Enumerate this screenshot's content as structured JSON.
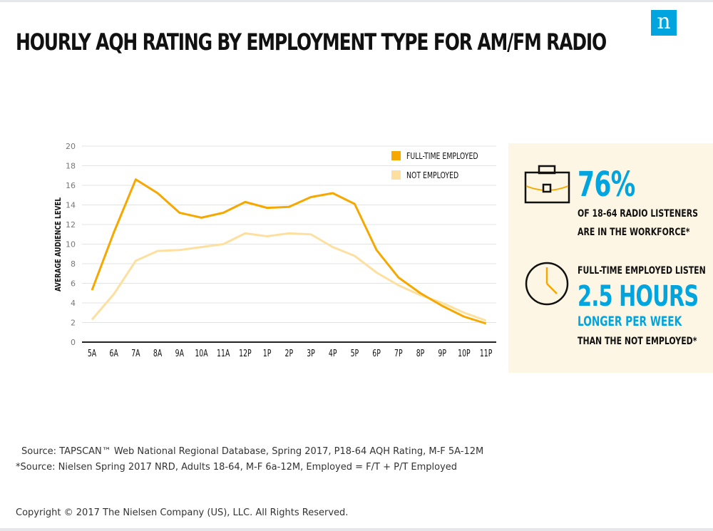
{
  "title": "HOURLY AQH RATING BY EMPLOYMENT TYPE FOR AM/FM RADIO",
  "brand": {
    "logo_letter": "n",
    "logo_color": "#00a5e0"
  },
  "chart_data": {
    "type": "line",
    "categories": [
      "5A",
      "6A",
      "7A",
      "8A",
      "9A",
      "10A",
      "11A",
      "12P",
      "1P",
      "2P",
      "3P",
      "4P",
      "5P",
      "6P",
      "7P",
      "8P",
      "9P",
      "10P",
      "11P"
    ],
    "series": [
      {
        "name": "FULL-TIME EMPLOYED",
        "color": "#f6a800",
        "values": [
          5.3,
          11.2,
          16.6,
          15.2,
          13.2,
          12.7,
          13.2,
          14.3,
          13.7,
          13.8,
          14.8,
          15.2,
          14.1,
          9.4,
          6.6,
          5.0,
          3.7,
          2.6,
          1.9
        ]
      },
      {
        "name": "NOT EMPLOYED",
        "color": "#fde0a0",
        "values": [
          2.3,
          4.9,
          8.3,
          9.3,
          9.4,
          9.7,
          10.0,
          11.1,
          10.8,
          11.1,
          11.0,
          9.7,
          8.8,
          7.1,
          5.8,
          4.8,
          4.0,
          3.0,
          2.2
        ]
      }
    ],
    "ylabel": "AVERAGE AUDIENCE LEVEL",
    "xlabel": "",
    "ylim": [
      0,
      20
    ],
    "yticks": [
      0,
      2,
      4,
      6,
      8,
      10,
      12,
      14,
      16,
      18,
      20
    ],
    "grid": true,
    "legend": "top-right"
  },
  "panel": {
    "stat1_value": "76%",
    "stat1_line1": "OF 18-64 RADIO LISTENERS",
    "stat1_line2": "ARE IN THE WORKFORCE*",
    "stat2_intro": "FULL-TIME EMPLOYED LISTEN",
    "stat2_value": "2.5 HOURS",
    "stat2_line1": "LONGER PER WEEK",
    "stat2_line2": "THAN THE NOT EMPLOYED*",
    "briefcase_icon": "briefcase-icon",
    "clock_icon": "clock-icon"
  },
  "sources": {
    "source1": "Source: TAPSCAN™ Web National Regional Database, Spring 2017, P18-64 AQH Rating, M-F 5A-12M",
    "source2": "*Source: Nielsen Spring 2017 NRD, Adults 18-64, M-F 6a-12M, Employed = F/T + P/T Employed"
  },
  "copyright": "Copyright © 2017 The Nielsen Company (US), LLC. All Rights Reserved."
}
